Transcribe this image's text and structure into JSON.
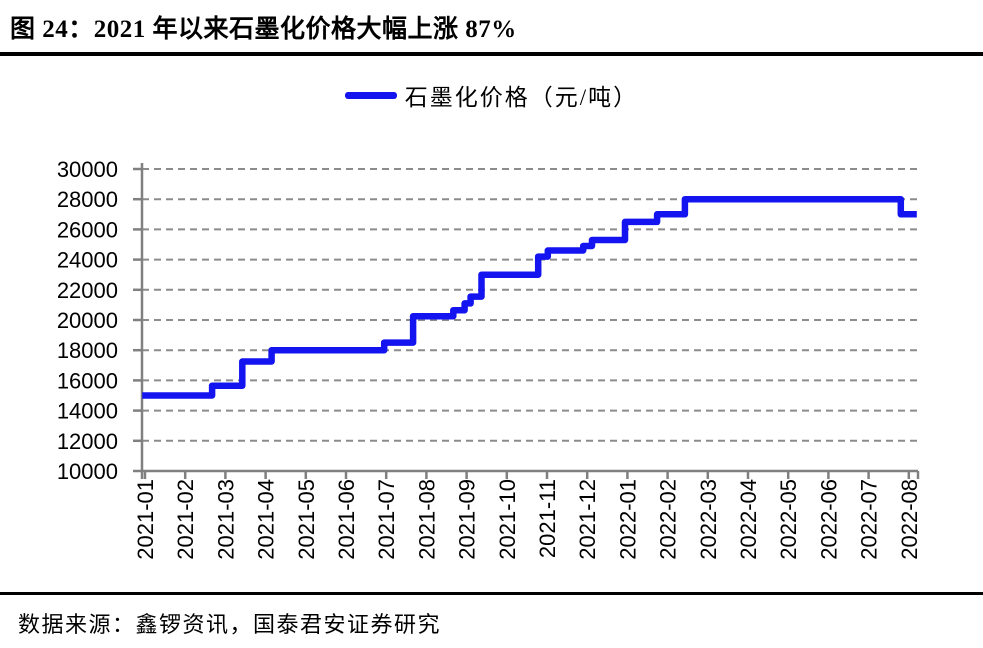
{
  "figure": {
    "title": "图 24：2021 年以来石墨化价格大幅上涨 87%",
    "source": "数据来源：鑫锣资讯，国泰君安证券研究"
  },
  "chart_data": {
    "type": "line",
    "subtype": "step-after",
    "title": "",
    "legend": [
      {
        "label": "石墨化价格（元/吨）",
        "color": "#1414f0"
      }
    ],
    "legend_position": "top-center",
    "line_color": "#1414f0",
    "grid": "horizontal-dashed",
    "grid_color": "#8c8c8c",
    "axis_color": "#808080",
    "label_color": "#000000",
    "ylim": [
      10000,
      30000
    ],
    "ytick_step": 2000,
    "yticks": [
      10000,
      12000,
      14000,
      16000,
      18000,
      20000,
      22000,
      24000,
      26000,
      28000,
      30000
    ],
    "x_categories": [
      "2021-01",
      "2021-02",
      "2021-03",
      "2021-04",
      "2021-05",
      "2021-06",
      "2021-07",
      "2021-08",
      "2021-09",
      "2021-10",
      "2021-11",
      "2021-12",
      "2022-01",
      "2022-02",
      "2022-03",
      "2022-04",
      "2022-05",
      "2022-06",
      "2022-07",
      "2022-08"
    ],
    "x_unit": "months since 2021-01",
    "series": [
      {
        "name": "石墨化价格（元/吨）",
        "step_points": [
          [
            -0.07,
            15000
          ],
          [
            1.67,
            15650
          ],
          [
            2.42,
            17250
          ],
          [
            3.15,
            18000
          ],
          [
            5.95,
            18500
          ],
          [
            6.67,
            20250
          ],
          [
            7.67,
            20650
          ],
          [
            7.95,
            21100
          ],
          [
            8.1,
            21550
          ],
          [
            8.37,
            23000
          ],
          [
            9.78,
            24200
          ],
          [
            10.02,
            24600
          ],
          [
            10.9,
            24900
          ],
          [
            11.12,
            25300
          ],
          [
            11.94,
            26500
          ],
          [
            12.74,
            27000
          ],
          [
            13.43,
            28000
          ],
          [
            18.8,
            27000
          ]
        ],
        "x_end": 19.2
      }
    ]
  }
}
